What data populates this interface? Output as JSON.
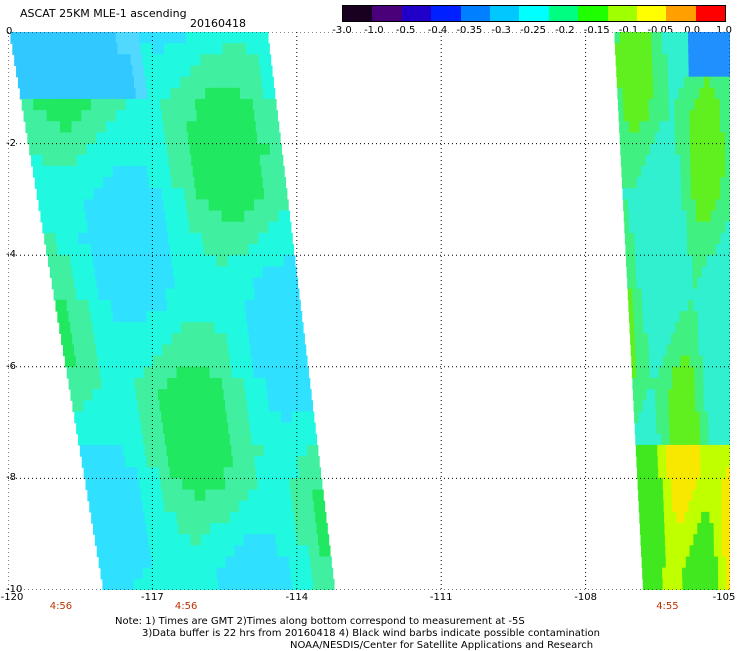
{
  "header": {
    "title": "ASCAT 25KM MLE-1 ascending",
    "date": "20160418"
  },
  "colorbar": {
    "labels": [
      "-3.0",
      "-1.0",
      "-0.5",
      "-0.4",
      "-0.35",
      "-0.3",
      "-0.25",
      "-0.2",
      "-0.15",
      "-0.1",
      "-0.05",
      "0.0",
      "1.0"
    ],
    "colors": [
      "#1a0020",
      "#4a0078",
      "#2000c8",
      "#0020ff",
      "#0080ff",
      "#00c8ff",
      "#00ffff",
      "#00ff80",
      "#20ff00",
      "#a0ff00",
      "#ffff00",
      "#ffa000",
      "#ff0000"
    ]
  },
  "chart_data": {
    "type": "heatmap",
    "title": "ASCAT 25KM MLE-1 ascending",
    "date": "20160418",
    "xlim": [
      -120,
      -105
    ],
    "ylim": [
      -10,
      0
    ],
    "x_ticks": [
      "-120",
      "-117",
      "-114",
      "-111",
      "-108",
      "-105"
    ],
    "y_ticks": [
      "0",
      "-2",
      "-4",
      "-6",
      "-8",
      "-10"
    ],
    "time_labels": [
      {
        "lon": -116.3,
        "text": "4:56"
      },
      {
        "lon": -118.9,
        "text": "4:56"
      },
      {
        "lon": -106.3,
        "text": "4:55"
      }
    ],
    "swaths": [
      {
        "name": "west",
        "left_top": -119.95,
        "left_bottom": -118.0,
        "right_top": -114.6,
        "right_bottom": -113.2
      },
      {
        "name": "east",
        "left_top": -107.4,
        "left_bottom": -106.8,
        "right_top": -105.0,
        "right_bottom": -105.0
      }
    ]
  },
  "notes": {
    "line1": "Note: 1) Times are GMT 2)Times along bottom correspond to measurement at -5S",
    "line2": "3)Data buffer is 22 hrs from 20160418 4) Black wind barbs indicate possible contamination",
    "line3": "NOAA/NESDIS/Center for Satellite Applications and Research"
  }
}
